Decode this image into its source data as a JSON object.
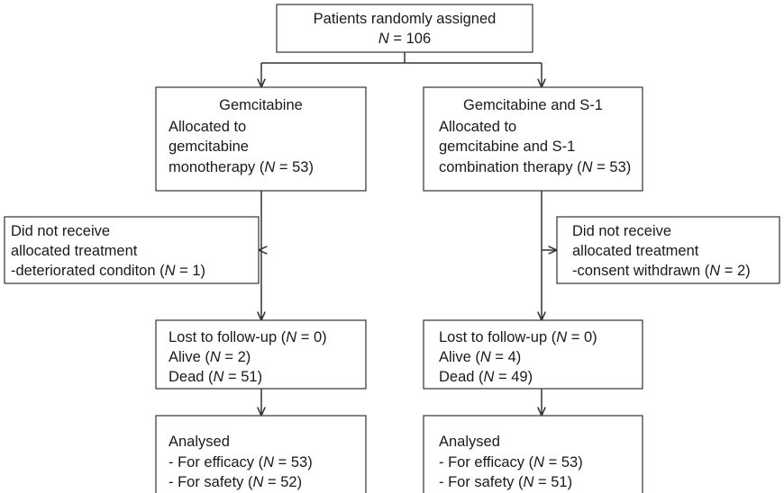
{
  "nodes": [
    {
      "lines": [
        "Patients randomly assigned",
        "N = 106"
      ]
    },
    {
      "lines": [
        "Gemcitabine",
        "Allocated to",
        "gemcitabine",
        "monotherapy (N = 53)"
      ]
    },
    {
      "lines": [
        "Gemcitabine and S-1",
        "Allocated to",
        "gemcitabine and S-1",
        "combination therapy (N = 53)"
      ]
    },
    {
      "lines": [
        "Did not receive",
        "allocated treatment",
        "-deteriorated conditon (N = 1)"
      ]
    },
    {
      "lines": [
        "Did not receive",
        "allocated treatment",
        "-consent withdrawn (N = 2)"
      ]
    },
    {
      "lines": [
        "Lost to follow-up (N = 0)",
        "Alive (N = 2)",
        "Dead (N = 51)"
      ]
    },
    {
      "lines": [
        "Lost to follow-up (N = 0)",
        "Alive (N = 4)",
        "Dead (N = 49)"
      ]
    },
    {
      "lines": [
        "Analysed",
        "- For efficacy (N = 53)",
        "- For safety (N = 52)"
      ]
    },
    {
      "lines": [
        "Analysed",
        "- For efficacy (N = 53)",
        "- For safety (N = 51)"
      ]
    }
  ]
}
